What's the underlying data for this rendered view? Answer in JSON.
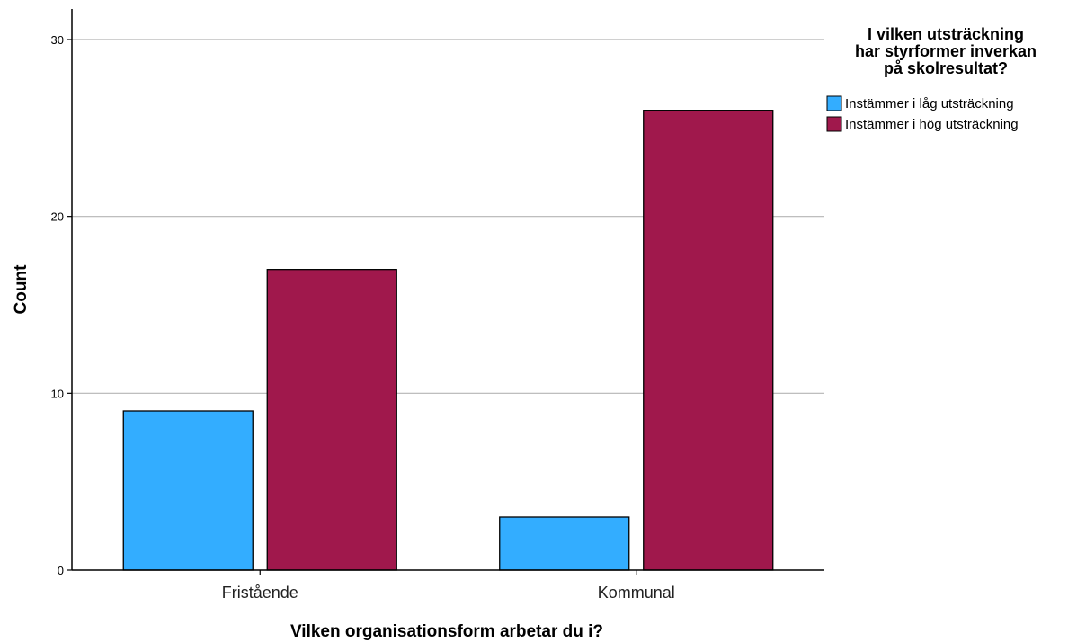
{
  "chart_data": {
    "type": "bar",
    "categories": [
      "Fristående",
      "Kommunal"
    ],
    "series": [
      {
        "name": "Instämmer i låg utsträckning",
        "values": [
          9,
          3
        ],
        "color": "#33adff"
      },
      {
        "name": "Instämmer i hög utsträckning",
        "values": [
          17,
          26
        ],
        "color": "#a0184c"
      }
    ],
    "title": "",
    "xlabel": "Vilken organisationsform arbetar du i?",
    "ylabel": "Count",
    "ylim": [
      0,
      30
    ],
    "yticks": [
      0,
      10,
      20,
      30
    ],
    "grid": true,
    "legend": {
      "title_lines": [
        "I vilken utsträckning",
        "har styrformer inverkan",
        "på skolresultat?"
      ],
      "position": "top-right"
    }
  }
}
